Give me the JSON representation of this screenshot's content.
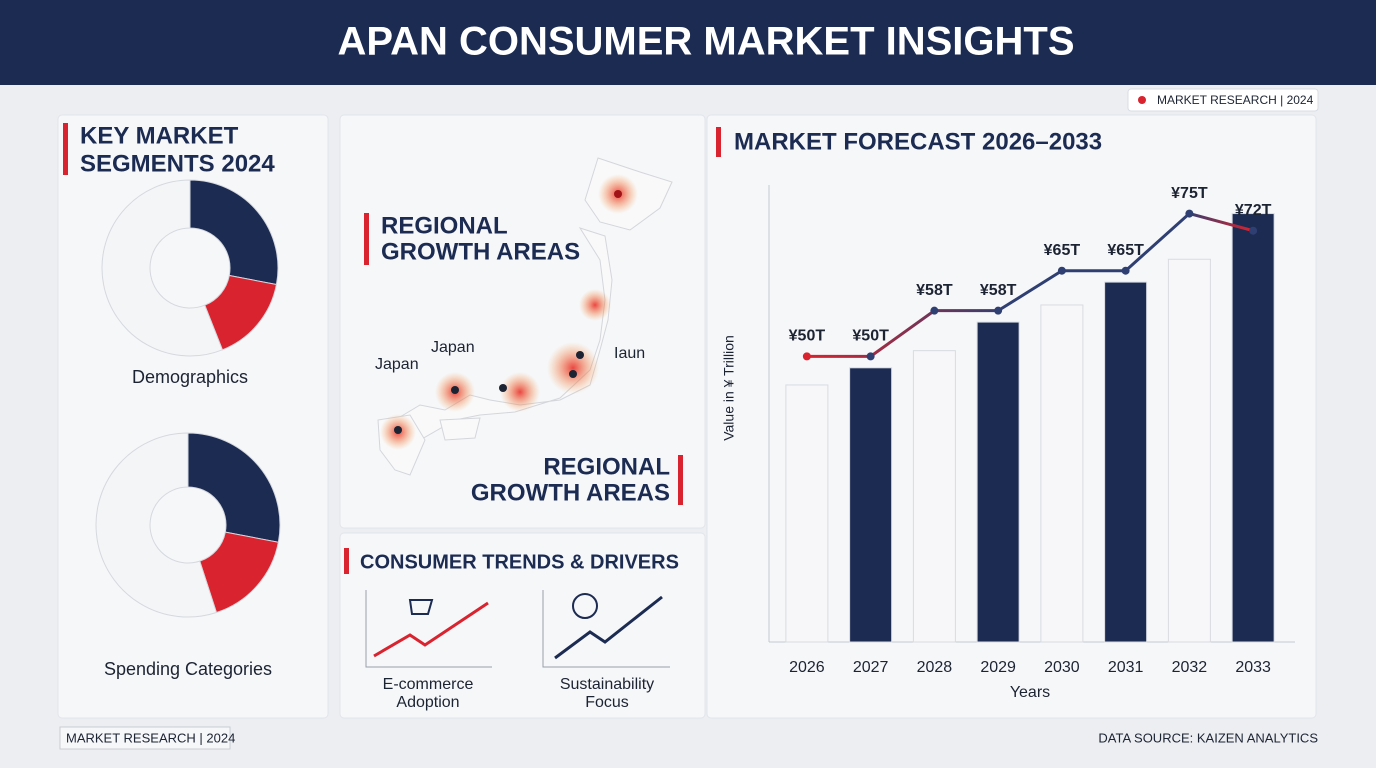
{
  "header": {
    "title": "APAN CONSUMER MARKET INSIGHTS",
    "badge": "MARKET RESEARCH | 2024"
  },
  "segments": {
    "title": [
      "KEY MARKET",
      "SEGMENTS 2024"
    ]
  },
  "chart_data": [
    {
      "type": "pie",
      "title": "Demographics",
      "values": [
        28,
        16,
        56
      ],
      "colors": [
        "#1c2b52",
        "#d9232e",
        "#f4f5f7"
      ]
    },
    {
      "type": "pie",
      "title": "Spending Categories",
      "values": [
        28,
        17,
        55
      ],
      "colors": [
        "#1c2b52",
        "#d9232e",
        "#f4f5f7"
      ]
    },
    {
      "type": "bar-line",
      "title": "MARKET FORECAST 2026–2033",
      "x_label": "Years",
      "y_label": "Value in ¥ Trillion",
      "categories": [
        "2026",
        "2027",
        "2028",
        "2029",
        "2030",
        "2031",
        "2032",
        "2033"
      ],
      "ylim": [
        0,
        80
      ],
      "series": [
        {
          "type": "bar",
          "values": [
            45,
            48,
            51,
            56,
            59,
            63,
            67,
            75
          ],
          "colors": [
            "#f7f7f9",
            "#1c2b52",
            "#f7f7f9",
            "#1c2b52",
            "#f7f7f9",
            "#1c2b52",
            "#f7f7f9",
            "#1c2b52"
          ]
        },
        {
          "type": "line",
          "color": "#2f3f72",
          "values": [
            50,
            50,
            58,
            58,
            65,
            65,
            75,
            72
          ],
          "value_labels": [
            "¥50T",
            "¥50T",
            "¥58T",
            "¥58T",
            "¥65T",
            "¥65T",
            "¥75T",
            "¥72T"
          ]
        }
      ]
    }
  ],
  "map": {
    "title": [
      "REGIONAL",
      "GROWTH AREAS"
    ],
    "title2": [
      "REGIONAL",
      "GROWTH AREAS"
    ],
    "labels": [
      "Japan",
      "Japan",
      "Iaun"
    ]
  },
  "trends": {
    "title": "CONSUMER TRENDS & DRIVERS",
    "items": [
      [
        "E-commerce",
        "Adoption"
      ],
      [
        "Sustainability",
        "Focus"
      ]
    ]
  },
  "footer": {
    "left": "MARKET RESEARCH  | 2024",
    "right": "DATA SOURCE: KAIZEN ANALYTICS"
  }
}
